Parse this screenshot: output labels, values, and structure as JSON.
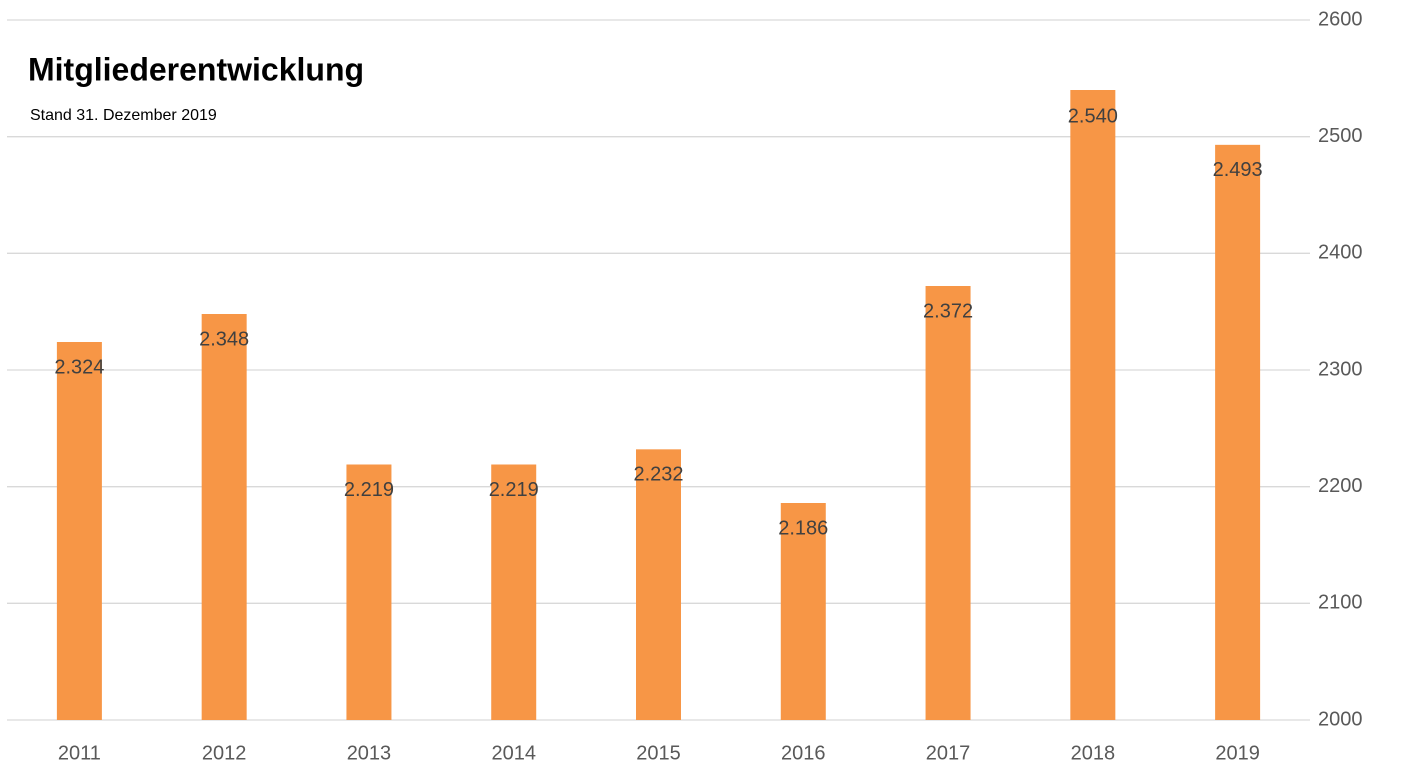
{
  "chart_data": {
    "type": "bar",
    "title": "Mitgliederentwicklung",
    "subtitle": "Stand 31. Dezember 2019",
    "categories": [
      "2011",
      "2012",
      "2013",
      "2014",
      "2015",
      "2016",
      "2017",
      "2018",
      "2019"
    ],
    "values": [
      2324,
      2348,
      2219,
      2219,
      2232,
      2186,
      2372,
      2540,
      2493
    ],
    "value_labels": [
      "2.324",
      "2.348",
      "2.219",
      "2.219",
      "2.232",
      "2.186",
      "2.372",
      "2.540",
      "2.493"
    ],
    "color": "#f79646",
    "ylim": [
      2000,
      2600
    ],
    "yticks": [
      2000,
      2100,
      2200,
      2300,
      2400,
      2500,
      2600
    ],
    "grid": true,
    "y_axis_side": "right"
  }
}
